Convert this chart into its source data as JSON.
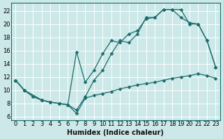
{
  "xlabel": "Humidex (Indice chaleur)",
  "bg_color": "#cce8e8",
  "line_color": "#1a6b6b",
  "grid_color": "#ffffff",
  "xlim": [
    -0.5,
    23.5
  ],
  "ylim": [
    5.5,
    23.2
  ],
  "xticks": [
    0,
    1,
    2,
    3,
    4,
    5,
    6,
    7,
    8,
    9,
    10,
    11,
    12,
    13,
    14,
    15,
    16,
    17,
    18,
    19,
    20,
    21,
    22,
    23
  ],
  "yticks": [
    6,
    8,
    10,
    12,
    14,
    16,
    18,
    20,
    22
  ],
  "curve1_x": [
    0,
    1,
    3,
    4,
    5,
    6,
    7,
    8,
    9,
    10,
    11,
    12,
    13,
    14,
    15,
    16,
    17,
    18,
    19,
    20,
    21,
    22,
    23
  ],
  "curve1_y": [
    11.5,
    10.0,
    8.5,
    8.2,
    8.0,
    7.8,
    7.0,
    9.0,
    11.5,
    13.0,
    15.5,
    17.5,
    17.2,
    18.5,
    21.0,
    21.0,
    22.2,
    22.2,
    22.2,
    20.0,
    20.0,
    17.5,
    13.5
  ],
  "curve2_x": [
    0,
    1,
    2,
    3,
    4,
    5,
    6,
    7,
    8,
    9,
    10,
    11,
    12,
    13,
    14,
    15,
    16,
    17,
    18,
    19,
    20,
    21,
    22,
    23
  ],
  "curve2_y": [
    11.5,
    10.0,
    9.0,
    8.5,
    8.2,
    8.0,
    7.8,
    6.5,
    8.8,
    9.2,
    9.5,
    9.8,
    10.2,
    10.5,
    10.8,
    11.0,
    11.2,
    11.5,
    11.8,
    12.0,
    12.2,
    12.5,
    12.2,
    11.8
  ],
  "curve3_x": [
    0,
    1,
    3,
    4,
    5,
    6,
    7,
    8,
    9,
    10,
    11,
    12,
    13,
    14,
    15,
    16,
    17,
    18,
    19,
    20,
    21,
    22,
    23
  ],
  "curve3_y": [
    11.5,
    10.0,
    8.5,
    8.2,
    8.0,
    7.8,
    15.8,
    11.2,
    13.0,
    15.5,
    17.5,
    17.2,
    18.5,
    19.0,
    20.8,
    21.0,
    22.2,
    22.2,
    21.0,
    20.2,
    20.0,
    17.5,
    13.5
  ],
  "label_fontsize": 7,
  "tick_fontsize": 6
}
